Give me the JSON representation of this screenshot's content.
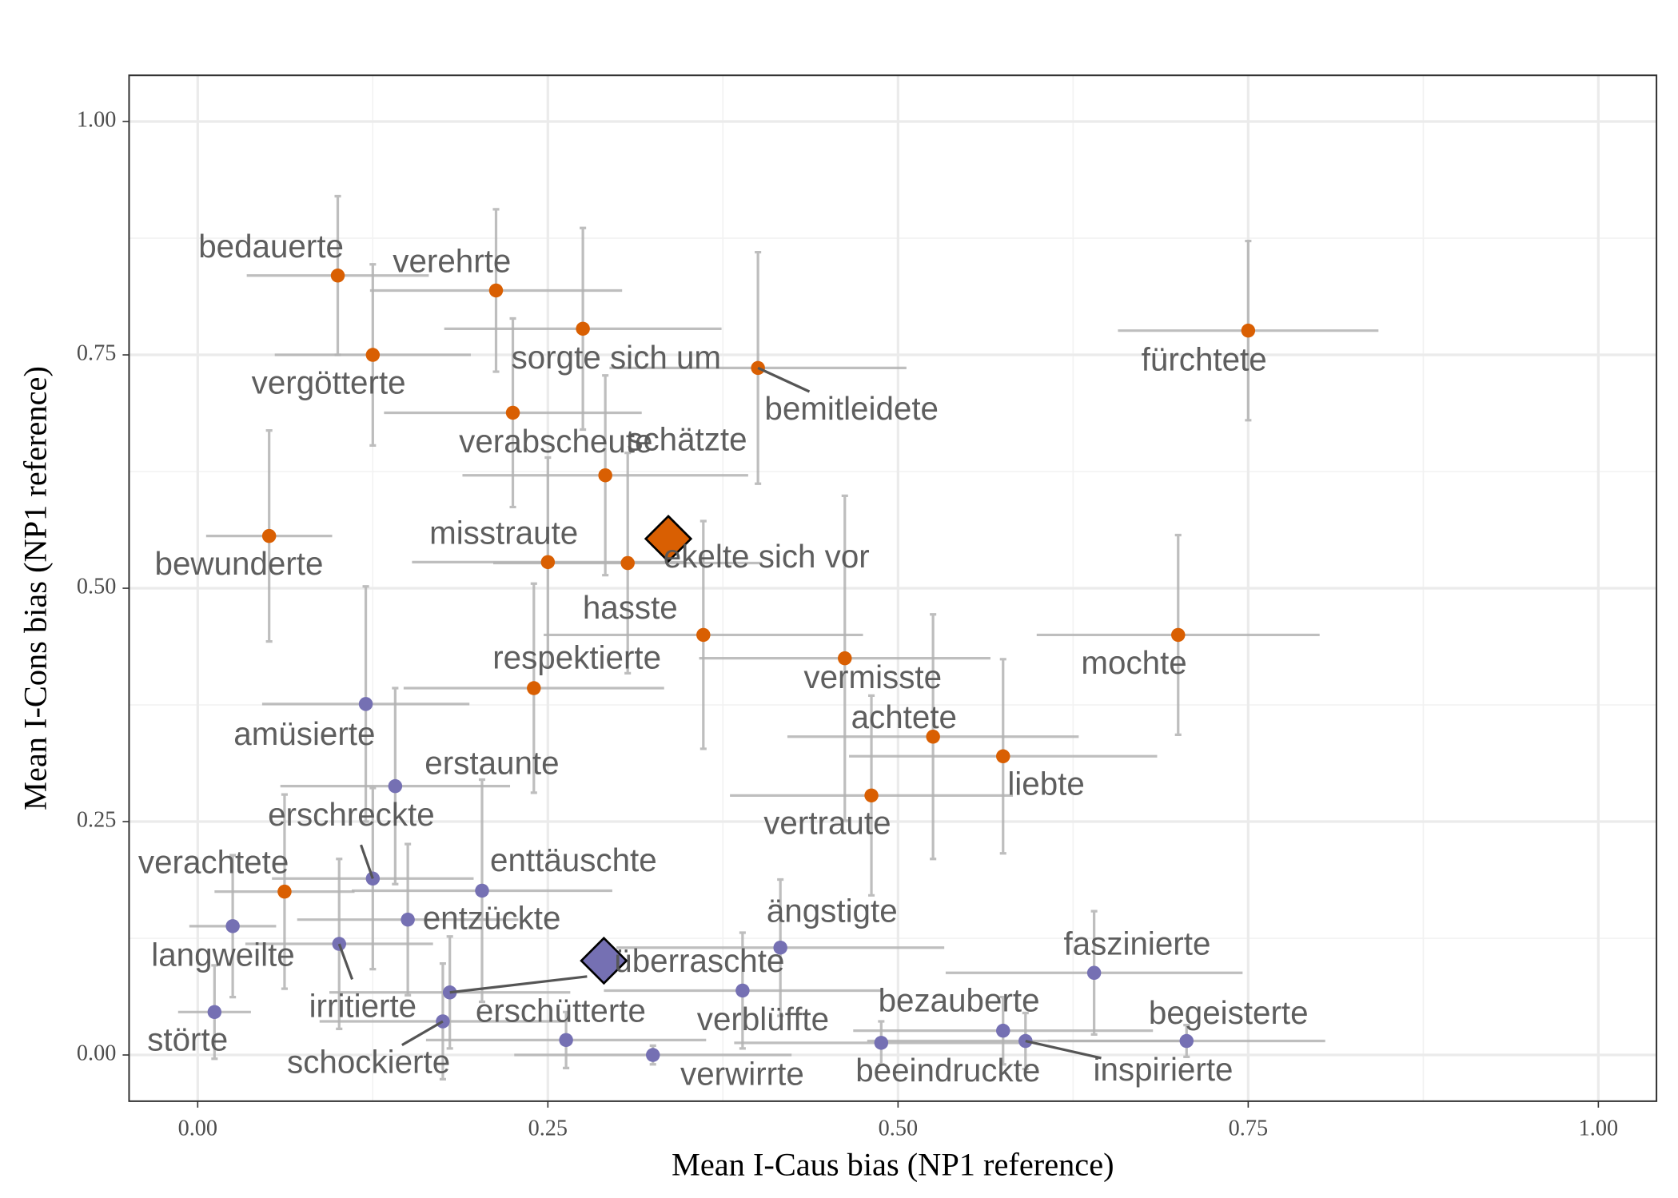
{
  "chart_data": {
    "type": "scatter",
    "x_label": "Mean I-Caus bias (NP1 reference)",
    "y_label": "Mean I-Cons bias (NP1 reference)",
    "xlim": [
      -0.049,
      1.0415
    ],
    "ylim": [
      -0.0495,
      1.0495
    ],
    "xticks": [
      {
        "value": 0,
        "label": "0.00"
      },
      {
        "value": 0.25,
        "label": "0.25"
      },
      {
        "value": 0.5,
        "label": "0.50"
      },
      {
        "value": 0.75,
        "label": "0.75"
      },
      {
        "value": 1,
        "label": "1.00"
      }
    ],
    "yticks": [
      {
        "value": 0,
        "label": "0.00"
      },
      {
        "value": 0.25,
        "label": "0.25"
      },
      {
        "value": 0.5,
        "label": "0.50"
      },
      {
        "value": 0.75,
        "label": "0.75"
      },
      {
        "value": 1,
        "label": "1.00"
      }
    ],
    "grid": true,
    "errorbar_color": "#b3b3b3",
    "series": [
      {
        "color": "#d95f02",
        "labels": [
          "bedauerte",
          "verehrte",
          "vergötterte",
          "sorgte sich um",
          "bemitleidete",
          "fürchtete",
          "verabscheute",
          "bewunderte",
          "schätzte",
          "misstraute",
          "ekelte sich vor",
          "hasste",
          "vermisste",
          "respektierte",
          "mochte",
          "achtete",
          "liebte",
          "vertraute",
          "verachtete"
        ],
        "x": [
          0.1,
          0.213,
          0.125,
          0.275,
          0.4,
          0.75,
          0.225,
          0.051,
          0.291,
          0.25,
          0.307,
          0.361,
          0.462,
          0.24,
          0.7,
          0.525,
          0.575,
          0.481,
          0.062
        ],
        "values": [
          0.835,
          0.819,
          0.75,
          0.778,
          0.736,
          0.776,
          0.688,
          0.556,
          0.621,
          0.528,
          0.527,
          0.45,
          0.425,
          0.393,
          0.45,
          0.341,
          0.32,
          0.278,
          0.175
        ],
        "xerr": [
          0.065,
          0.09,
          0.07,
          0.099,
          0.106,
          0.093,
          0.092,
          0.045,
          0.102,
          0.097,
          0.096,
          0.114,
          0.104,
          0.093,
          0.101,
          0.104,
          0.11,
          0.101,
          0.05
        ],
        "yerr": [
          0.085,
          0.087,
          0.097,
          0.108,
          0.124,
          0.096,
          0.101,
          0.113,
          0.107,
          0.112,
          0.118,
          0.122,
          0.174,
          0.112,
          0.107,
          0.131,
          0.104,
          0.107,
          0.104
        ]
      },
      {
        "color": "#7570b3",
        "labels": [
          "amüsierte",
          "erstaunte",
          "erschreckte",
          "enttäuschte",
          "entzückte",
          "langweilte",
          "irritierte",
          "überraschte",
          "schockierte",
          "störte",
          "erschütterte",
          "verwirrte",
          "verblüffte",
          "ängstigte",
          "faszinierte",
          "bezauberte",
          "beeindruckte",
          "inspirierte",
          "begeisterte"
        ],
        "x": [
          0.12,
          0.141,
          0.125,
          0.203,
          0.15,
          0.025,
          0.101,
          0.18,
          0.175,
          0.012,
          0.263,
          0.325,
          0.389,
          0.416,
          0.64,
          0.575,
          0.488,
          0.591,
          0.706
        ],
        "values": [
          0.376,
          0.288,
          0.189,
          0.176,
          0.145,
          0.138,
          0.119,
          0.067,
          0.036,
          0.046,
          0.016,
          0.0,
          0.069,
          0.115,
          0.088,
          0.026,
          0.013,
          0.015,
          0.015
        ],
        "xerr": [
          0.074,
          0.082,
          0.072,
          0.093,
          0.079,
          0.031,
          0.067,
          0.086,
          0.088,
          0.026,
          0.1,
          0.099,
          0.099,
          0.117,
          0.106,
          0.107,
          0.105,
          0.113,
          0.099
        ],
        "yerr": [
          0.126,
          0.105,
          0.097,
          0.119,
          0.081,
          0.076,
          0.091,
          0.06,
          0.062,
          0.05,
          0.03,
          0.01,
          0.062,
          0.073,
          0.066,
          0.036,
          0.023,
          0.03,
          0.017
        ]
      }
    ],
    "means": [
      {
        "color": "#d95f02",
        "x": 0.336,
        "y": 0.553
      },
      {
        "color": "#7570b3",
        "x": 0.29,
        "y": 0.101
      }
    ]
  }
}
